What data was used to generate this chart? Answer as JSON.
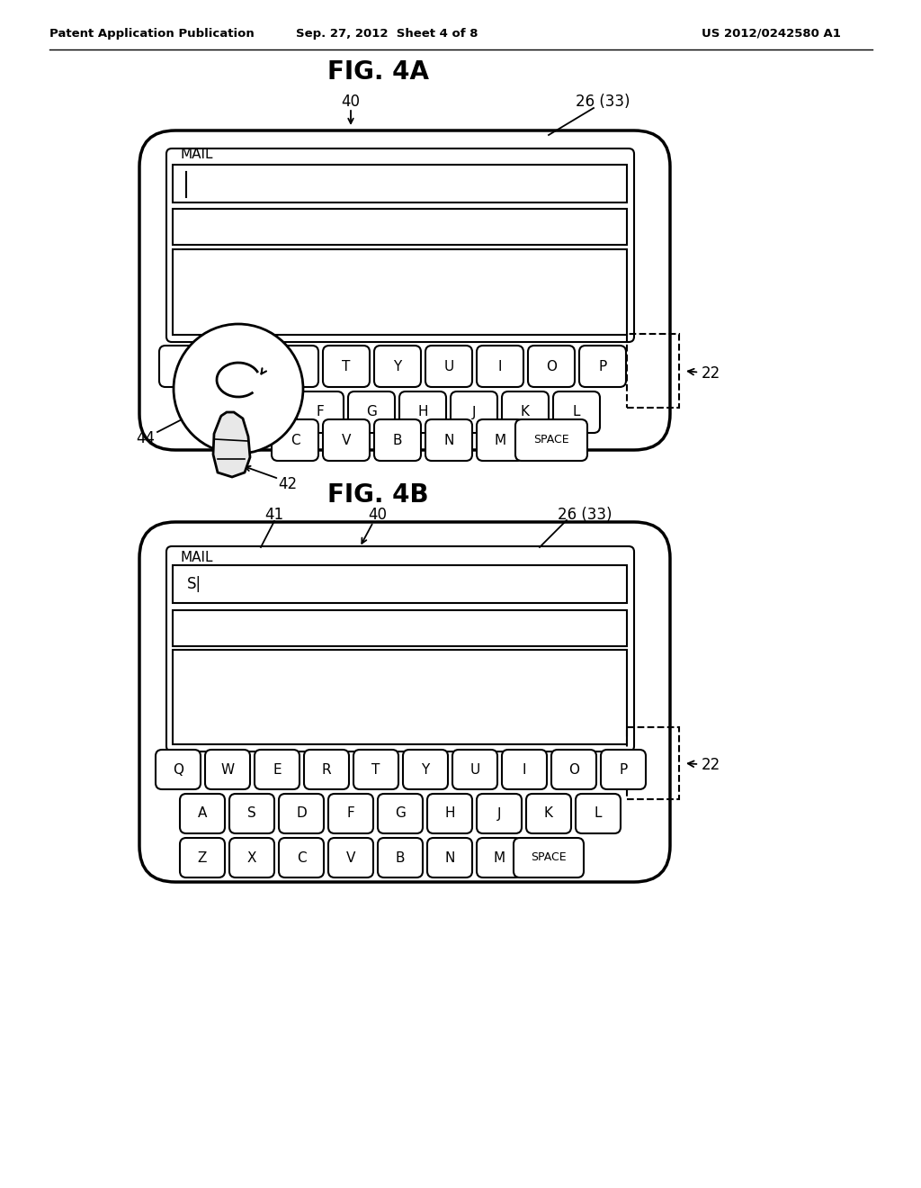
{
  "bg_color": "#ffffff",
  "text_color": "#000000",
  "header_left": "Patent Application Publication",
  "header_center": "Sep. 27, 2012  Sheet 4 of 8",
  "header_right": "US 2012/0242580 A1",
  "fig4a_title": "FIG. 4A",
  "fig4b_title": "FIG. 4B",
  "keyboard_row1_4a": [
    "R",
    "T",
    "Y",
    "U",
    "I",
    "O",
    "P"
  ],
  "keyboard_row2_4a": [
    "F",
    "G",
    "H",
    "J",
    "K",
    "L"
  ],
  "keyboard_row3_4a": [
    "C",
    "V",
    "B",
    "N",
    "M",
    "SPACE"
  ],
  "keyboard_row1_4b": [
    "Q",
    "W",
    "E",
    "R",
    "T",
    "Y",
    "U",
    "I",
    "O",
    "P"
  ],
  "keyboard_row2_4b": [
    "A",
    "S",
    "D",
    "F",
    "G",
    "H",
    "J",
    "K",
    "L"
  ],
  "keyboard_row3_4b": [
    "Z",
    "X",
    "C",
    "V",
    "B",
    "N",
    "M",
    "SPACE"
  ]
}
